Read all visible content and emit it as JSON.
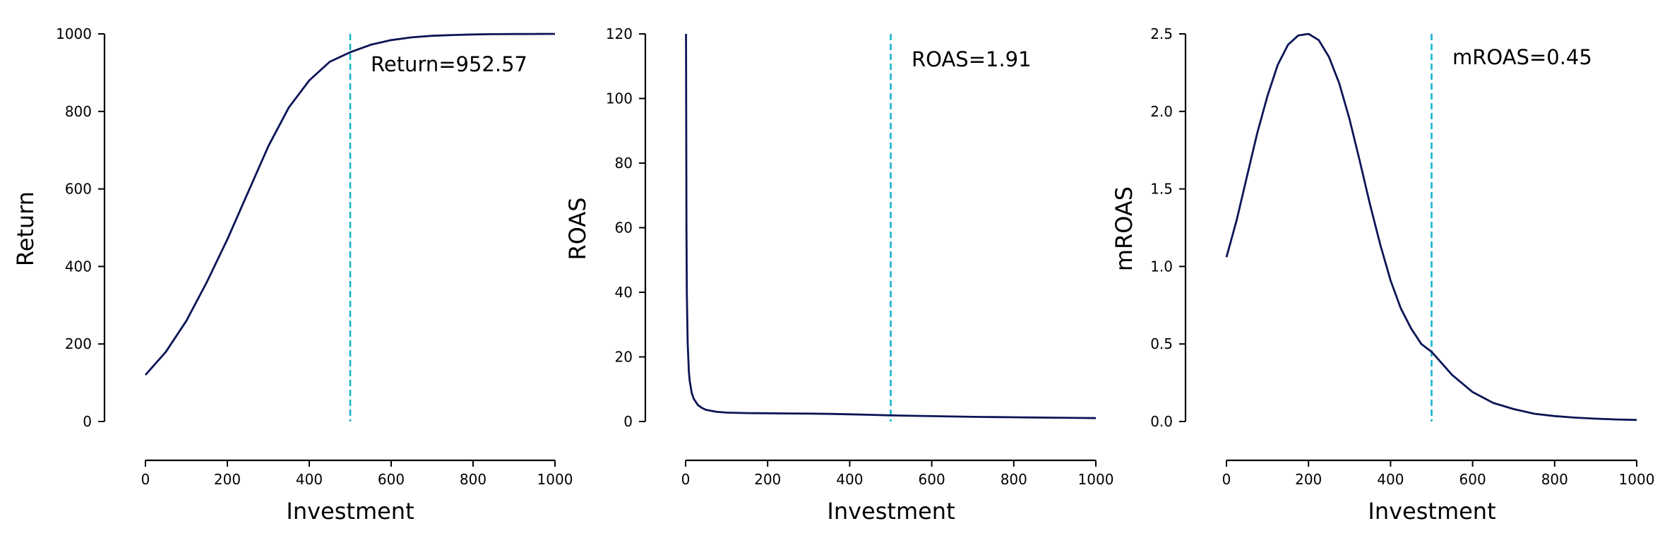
{
  "chart_data": [
    {
      "type": "line",
      "xlabel": "Investment",
      "ylabel": "Return",
      "xlim": [
        0,
        1000
      ],
      "ylim": [
        0,
        1000
      ],
      "xticks": [
        "0",
        "200",
        "400",
        "600",
        "800",
        "1000"
      ],
      "yticks": [
        "0",
        "200",
        "400",
        "600",
        "800",
        "1000"
      ],
      "series": [
        {
          "x": [
            0,
            50,
            100,
            150,
            200,
            250,
            300,
            350,
            400,
            450,
            500,
            550,
            600,
            650,
            700,
            750,
            800,
            850,
            900,
            950,
            1000
          ],
          "y": [
            120,
            180,
            260,
            360,
            470,
            590,
            710,
            810,
            880,
            928,
            952.57,
            972,
            984,
            991,
            995,
            997,
            998.5,
            999.2,
            999.6,
            999.8,
            1000
          ]
        }
      ],
      "vline": 500,
      "annotation": "Return=952.57",
      "grid": false,
      "colors": {
        "line": "#0b1556",
        "vline": "#17b3cf"
      }
    },
    {
      "type": "line",
      "xlabel": "Investment",
      "ylabel": "ROAS",
      "xlim": [
        0,
        1000
      ],
      "ylim": [
        0,
        120
      ],
      "xticks": [
        "0",
        "200",
        "400",
        "600",
        "800",
        "1000"
      ],
      "yticks": [
        "0",
        "20",
        "40",
        "60",
        "80",
        "100",
        "120"
      ],
      "series": [
        {
          "x": [
            1,
            2,
            3,
            5,
            8,
            10,
            15,
            20,
            30,
            40,
            50,
            75,
            100,
            150,
            200,
            250,
            300,
            350,
            400,
            450,
            500,
            550,
            600,
            650,
            700,
            750,
            800,
            850,
            900,
            950,
            1000
          ],
          "y": [
            120,
            60,
            40.3,
            24.5,
            15.5,
            12.6,
            8.8,
            7.0,
            5.1,
            4.2,
            3.6,
            3.0,
            2.75,
            2.6,
            2.55,
            2.5,
            2.45,
            2.35,
            2.22,
            2.07,
            1.91,
            1.78,
            1.66,
            1.55,
            1.45,
            1.38,
            1.31,
            1.24,
            1.18,
            1.12,
            1.05
          ]
        }
      ],
      "vline": 500,
      "annotation": "ROAS=1.91",
      "grid": false,
      "colors": {
        "line": "#0b1556",
        "vline": "#17b3cf"
      }
    },
    {
      "type": "line",
      "xlabel": "Investment",
      "ylabel": "mROAS",
      "xlim": [
        0,
        1000
      ],
      "ylim": [
        0,
        2.5
      ],
      "xticks": [
        "0",
        "200",
        "400",
        "600",
        "800",
        "1000"
      ],
      "yticks": [
        "0.0",
        "0.5",
        "1.0",
        "1.5",
        "2.0",
        "2.5"
      ],
      "series": [
        {
          "x": [
            0,
            25,
            50,
            75,
            100,
            125,
            150,
            175,
            200,
            225,
            250,
            275,
            300,
            325,
            350,
            375,
            400,
            425,
            450,
            475,
            500,
            550,
            600,
            650,
            700,
            750,
            800,
            850,
            900,
            950,
            1000
          ],
          "y": [
            1.06,
            1.3,
            1.58,
            1.86,
            2.1,
            2.3,
            2.43,
            2.49,
            2.5,
            2.46,
            2.35,
            2.18,
            1.95,
            1.68,
            1.4,
            1.14,
            0.91,
            0.73,
            0.6,
            0.5,
            0.45,
            0.3,
            0.19,
            0.12,
            0.08,
            0.05,
            0.035,
            0.025,
            0.018,
            0.013,
            0.01
          ]
        }
      ],
      "vline": 500,
      "annotation": "mROAS=0.45",
      "grid": false,
      "colors": {
        "line": "#0b1556",
        "vline": "#17b3cf"
      }
    }
  ]
}
